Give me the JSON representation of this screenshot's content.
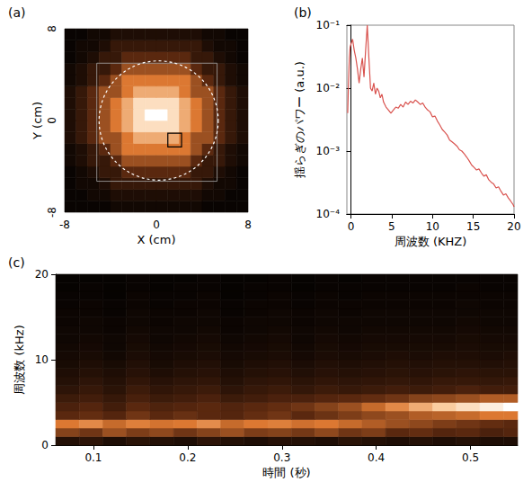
{
  "chart_data": [
    {
      "panel": "(a)",
      "type": "heatmap",
      "xlabel": "X (cm)",
      "ylabel": "Y (cm)",
      "xlim": [
        -8,
        8
      ],
      "ylim": [
        -8,
        8
      ],
      "xticks": [
        -8,
        0,
        8
      ],
      "yticks": [
        -8,
        0,
        8
      ],
      "grid": false,
      "x_edges": [
        -8,
        -7,
        -6,
        -5,
        -4,
        -3,
        -2,
        -1,
        0,
        1,
        2,
        3,
        4,
        5,
        6,
        7,
        8
      ],
      "y_edges": [
        -8,
        -7,
        -6,
        -5,
        -4,
        -3,
        -2,
        -1,
        0,
        1,
        2,
        3,
        4,
        5,
        6,
        7,
        8
      ],
      "zlim": [
        0,
        1
      ],
      "cells": [
        [
          0.03,
          0.03,
          0.03,
          0.03,
          0.06,
          0.06,
          0.06,
          0.06,
          0.06,
          0.06,
          0.06,
          0.06,
          0.03,
          0.03,
          0.03,
          0.03
        ],
        [
          0.03,
          0.03,
          0.06,
          0.06,
          0.1,
          0.1,
          0.1,
          0.1,
          0.1,
          0.1,
          0.1,
          0.1,
          0.06,
          0.06,
          0.03,
          0.03
        ],
        [
          0.03,
          0.06,
          0.06,
          0.1,
          0.18,
          0.18,
          0.18,
          0.18,
          0.18,
          0.18,
          0.18,
          0.18,
          0.1,
          0.06,
          0.06,
          0.03
        ],
        [
          0.03,
          0.06,
          0.1,
          0.18,
          0.18,
          0.3,
          0.3,
          0.3,
          0.3,
          0.3,
          0.3,
          0.18,
          0.18,
          0.1,
          0.06,
          0.03
        ],
        [
          0.06,
          0.1,
          0.18,
          0.18,
          0.3,
          0.45,
          0.45,
          0.45,
          0.45,
          0.45,
          0.45,
          0.3,
          0.18,
          0.18,
          0.1,
          0.06
        ],
        [
          0.06,
          0.1,
          0.18,
          0.3,
          0.45,
          0.6,
          0.6,
          0.6,
          0.6,
          0.6,
          0.6,
          0.45,
          0.3,
          0.18,
          0.1,
          0.06
        ],
        [
          0.1,
          0.18,
          0.3,
          0.45,
          0.45,
          0.6,
          0.75,
          0.75,
          0.75,
          0.75,
          0.6,
          0.45,
          0.45,
          0.3,
          0.18,
          0.1
        ],
        [
          0.1,
          0.18,
          0.3,
          0.45,
          0.6,
          0.75,
          0.9,
          0.9,
          0.9,
          0.9,
          0.75,
          0.6,
          0.45,
          0.3,
          0.18,
          0.1
        ],
        [
          0.1,
          0.18,
          0.3,
          0.45,
          0.6,
          0.75,
          0.9,
          1.0,
          1.0,
          0.9,
          0.75,
          0.6,
          0.45,
          0.3,
          0.18,
          0.1
        ],
        [
          0.1,
          0.18,
          0.3,
          0.45,
          0.6,
          0.75,
          0.9,
          0.9,
          0.9,
          0.9,
          0.75,
          0.6,
          0.45,
          0.3,
          0.18,
          0.1
        ],
        [
          0.1,
          0.18,
          0.3,
          0.45,
          0.45,
          0.6,
          0.75,
          0.75,
          0.75,
          0.75,
          0.6,
          0.45,
          0.45,
          0.3,
          0.18,
          0.1
        ],
        [
          0.06,
          0.1,
          0.18,
          0.3,
          0.45,
          0.6,
          0.6,
          0.6,
          0.6,
          0.6,
          0.6,
          0.45,
          0.3,
          0.18,
          0.1,
          0.06
        ],
        [
          0.06,
          0.1,
          0.18,
          0.18,
          0.3,
          0.45,
          0.45,
          0.45,
          0.45,
          0.45,
          0.45,
          0.3,
          0.18,
          0.18,
          0.1,
          0.06
        ],
        [
          0.03,
          0.06,
          0.1,
          0.18,
          0.18,
          0.3,
          0.3,
          0.3,
          0.3,
          0.3,
          0.3,
          0.18,
          0.18,
          0.1,
          0.06,
          0.03
        ],
        [
          0.03,
          0.06,
          0.06,
          0.1,
          0.18,
          0.18,
          0.18,
          0.18,
          0.18,
          0.18,
          0.18,
          0.18,
          0.1,
          0.06,
          0.06,
          0.03
        ],
        [
          0.03,
          0.03,
          0.06,
          0.06,
          0.1,
          0.1,
          0.1,
          0.1,
          0.1,
          0.1,
          0.1,
          0.1,
          0.06,
          0.06,
          0.03,
          0.03
        ]
      ],
      "circle": {
        "center": [
          0.2,
          0
        ],
        "radius": 5.2
      },
      "frame": {
        "x": [
          -5.2,
          5.3
        ],
        "y": [
          -5.3,
          5.0
        ]
      },
      "box": {
        "x": [
          1.0,
          2.2
        ],
        "y": [
          -2.3,
          -1.1
        ]
      }
    },
    {
      "panel": "(b)",
      "type": "line",
      "xlabel": "周波数 (KHZ)",
      "ylabel": "揺らぎのパワー (a.u.)",
      "log": "y",
      "grid": false,
      "color": "#d9534f",
      "xlim": [
        -0.5,
        20
      ],
      "xticks": [
        0,
        5,
        10,
        15,
        20
      ],
      "ylim": [
        0.0001,
        0.1
      ],
      "yticks": [
        {
          "value": 0.0001,
          "label": "10⁻⁴"
        },
        {
          "value": 0.001,
          "label": "10⁻³"
        },
        {
          "value": 0.01,
          "label": "10⁻²"
        },
        {
          "value": 0.1,
          "label": "10⁻¹"
        }
      ],
      "x": [
        -0.4,
        -0.3,
        -0.2,
        -0.1,
        0,
        0.2,
        0.4,
        0.6,
        0.8,
        1.0,
        1.2,
        1.4,
        1.6,
        1.8,
        2.0,
        2.2,
        2.4,
        2.6,
        2.8,
        3.0,
        3.2,
        3.4,
        3.6,
        3.8,
        4.0,
        4.3,
        4.6,
        4.9,
        5.2,
        5.5,
        5.8,
        6.1,
        6.4,
        6.7,
        7.0,
        7.3,
        7.6,
        7.9,
        8.2,
        8.5,
        8.8,
        9.1,
        9.4,
        9.7,
        10.0,
        10.3,
        10.6,
        10.9,
        11.2,
        11.5,
        11.8,
        12.1,
        12.4,
        12.7,
        13.0,
        13.3,
        13.6,
        13.9,
        14.2,
        14.5,
        14.8,
        15.1,
        15.4,
        15.7,
        16.0,
        16.3,
        16.6,
        16.9,
        17.2,
        17.5,
        17.8,
        18.1,
        18.4,
        18.7,
        19.0,
        19.3,
        19.6,
        19.9,
        20.0
      ],
      "values": [
        0.004,
        0.012,
        0.03,
        0.045,
        0.05,
        0.06,
        0.04,
        0.03,
        0.02,
        0.012,
        0.02,
        0.03,
        0.015,
        0.04,
        0.1,
        0.03,
        0.01,
        0.009,
        0.012,
        0.008,
        0.01,
        0.009,
        0.007,
        0.008,
        0.006,
        0.005,
        0.0045,
        0.004,
        0.0045,
        0.005,
        0.0048,
        0.0055,
        0.005,
        0.006,
        0.0055,
        0.0062,
        0.0058,
        0.0065,
        0.006,
        0.0055,
        0.0058,
        0.005,
        0.0045,
        0.0042,
        0.0035,
        0.0036,
        0.003,
        0.0026,
        0.0022,
        0.002,
        0.0018,
        0.0015,
        0.0014,
        0.0013,
        0.0012,
        0.00105,
        0.001,
        0.0009,
        0.0008,
        0.0007,
        0.0006,
        0.00055,
        0.0005,
        0.00052,
        0.00045,
        0.0004,
        0.00042,
        0.00035,
        0.00032,
        0.0003,
        0.00026,
        0.00027,
        0.00023,
        0.0002,
        0.00021,
        0.00018,
        0.00016,
        0.00014,
        0.00013
      ]
    },
    {
      "panel": "(c)",
      "type": "heatmap",
      "xlabel": "時間 (秒)",
      "ylabel": "周波数 (kHz)",
      "xlim": [
        0.06,
        0.55
      ],
      "xticks": [
        0.1,
        0.2,
        0.3,
        0.4,
        0.5
      ],
      "ylim": [
        0,
        20
      ],
      "yticks": [
        0,
        10,
        20
      ],
      "grid": false,
      "x_edges": [
        0.06,
        0.085,
        0.11,
        0.135,
        0.16,
        0.185,
        0.21,
        0.235,
        0.26,
        0.285,
        0.31,
        0.335,
        0.36,
        0.385,
        0.41,
        0.435,
        0.46,
        0.485,
        0.51,
        0.535,
        0.56
      ],
      "y_edges": [
        0,
        1,
        2,
        3,
        4,
        5,
        6,
        7,
        8,
        9,
        10,
        11,
        12,
        13,
        14,
        15,
        16,
        17,
        18,
        19,
        20
      ],
      "zlim": [
        0,
        1
      ],
      "cells": [
        [
          0.12,
          0.15,
          0.1,
          0.14,
          0.12,
          0.1,
          0.15,
          0.12,
          0.1,
          0.13,
          0.12,
          0.1,
          0.14,
          0.12,
          0.1,
          0.12,
          0.1,
          0.12,
          0.1,
          0.1
        ],
        [
          0.4,
          0.35,
          0.45,
          0.38,
          0.42,
          0.35,
          0.4,
          0.45,
          0.38,
          0.4,
          0.36,
          0.42,
          0.35,
          0.38,
          0.3,
          0.32,
          0.28,
          0.3,
          0.25,
          0.28
        ],
        [
          0.6,
          0.65,
          0.55,
          0.62,
          0.58,
          0.6,
          0.66,
          0.55,
          0.6,
          0.62,
          0.57,
          0.6,
          0.55,
          0.5,
          0.45,
          0.42,
          0.38,
          0.35,
          0.32,
          0.3
        ],
        [
          0.3,
          0.32,
          0.28,
          0.35,
          0.3,
          0.33,
          0.3,
          0.28,
          0.32,
          0.35,
          0.3,
          0.34,
          0.38,
          0.42,
          0.45,
          0.5,
          0.52,
          0.55,
          0.6,
          0.6
        ],
        [
          0.25,
          0.28,
          0.22,
          0.3,
          0.26,
          0.28,
          0.3,
          0.27,
          0.3,
          0.32,
          0.35,
          0.4,
          0.45,
          0.55,
          0.65,
          0.75,
          0.85,
          0.9,
          0.95,
          1.0
        ],
        [
          0.2,
          0.22,
          0.18,
          0.24,
          0.2,
          0.22,
          0.25,
          0.2,
          0.22,
          0.25,
          0.25,
          0.28,
          0.3,
          0.32,
          0.35,
          0.4,
          0.42,
          0.45,
          0.5,
          0.5
        ],
        [
          0.15,
          0.18,
          0.14,
          0.2,
          0.16,
          0.18,
          0.2,
          0.15,
          0.18,
          0.2,
          0.17,
          0.2,
          0.18,
          0.2,
          0.22,
          0.2,
          0.22,
          0.25,
          0.22,
          0.22
        ],
        [
          0.12,
          0.15,
          0.12,
          0.16,
          0.13,
          0.15,
          0.16,
          0.12,
          0.15,
          0.16,
          0.14,
          0.16,
          0.15,
          0.16,
          0.17,
          0.16,
          0.18,
          0.18,
          0.17,
          0.18
        ],
        [
          0.1,
          0.12,
          0.1,
          0.13,
          0.1,
          0.12,
          0.13,
          0.1,
          0.12,
          0.13,
          0.11,
          0.13,
          0.12,
          0.13,
          0.14,
          0.13,
          0.14,
          0.15,
          0.14,
          0.14
        ],
        [
          0.08,
          0.1,
          0.08,
          0.11,
          0.08,
          0.1,
          0.11,
          0.08,
          0.1,
          0.11,
          0.09,
          0.11,
          0.1,
          0.11,
          0.12,
          0.11,
          0.12,
          0.12,
          0.11,
          0.12
        ],
        [
          0.07,
          0.08,
          0.06,
          0.09,
          0.07,
          0.08,
          0.09,
          0.07,
          0.08,
          0.09,
          0.07,
          0.09,
          0.08,
          0.09,
          0.1,
          0.09,
          0.1,
          0.1,
          0.09,
          0.1
        ],
        [
          0.06,
          0.07,
          0.05,
          0.08,
          0.06,
          0.07,
          0.08,
          0.06,
          0.07,
          0.08,
          0.06,
          0.08,
          0.07,
          0.08,
          0.08,
          0.08,
          0.08,
          0.09,
          0.08,
          0.08
        ],
        [
          0.05,
          0.06,
          0.05,
          0.07,
          0.05,
          0.06,
          0.07,
          0.05,
          0.06,
          0.07,
          0.05,
          0.07,
          0.06,
          0.07,
          0.07,
          0.07,
          0.07,
          0.08,
          0.07,
          0.07
        ],
        [
          0.05,
          0.05,
          0.04,
          0.06,
          0.05,
          0.05,
          0.06,
          0.04,
          0.05,
          0.06,
          0.05,
          0.06,
          0.05,
          0.06,
          0.06,
          0.06,
          0.06,
          0.07,
          0.06,
          0.06
        ],
        [
          0.04,
          0.05,
          0.04,
          0.05,
          0.04,
          0.05,
          0.05,
          0.04,
          0.05,
          0.05,
          0.04,
          0.05,
          0.05,
          0.05,
          0.05,
          0.05,
          0.05,
          0.06,
          0.05,
          0.05
        ],
        [
          0.04,
          0.04,
          0.03,
          0.05,
          0.04,
          0.04,
          0.05,
          0.03,
          0.04,
          0.05,
          0.04,
          0.05,
          0.04,
          0.05,
          0.05,
          0.05,
          0.05,
          0.05,
          0.05,
          0.05
        ],
        [
          0.03,
          0.04,
          0.03,
          0.04,
          0.03,
          0.04,
          0.04,
          0.03,
          0.04,
          0.04,
          0.03,
          0.04,
          0.04,
          0.04,
          0.04,
          0.04,
          0.04,
          0.05,
          0.04,
          0.04
        ],
        [
          0.03,
          0.03,
          0.02,
          0.04,
          0.03,
          0.03,
          0.04,
          0.02,
          0.03,
          0.04,
          0.03,
          0.04,
          0.03,
          0.04,
          0.04,
          0.04,
          0.04,
          0.04,
          0.04,
          0.04
        ],
        [
          0.02,
          0.03,
          0.02,
          0.03,
          0.02,
          0.03,
          0.03,
          0.02,
          0.03,
          0.03,
          0.02,
          0.03,
          0.03,
          0.03,
          0.03,
          0.03,
          0.03,
          0.04,
          0.03,
          0.03
        ],
        [
          0.02,
          0.02,
          0.02,
          0.03,
          0.02,
          0.02,
          0.03,
          0.02,
          0.02,
          0.03,
          0.02,
          0.03,
          0.02,
          0.03,
          0.03,
          0.03,
          0.03,
          0.03,
          0.03,
          0.03
        ]
      ]
    }
  ]
}
